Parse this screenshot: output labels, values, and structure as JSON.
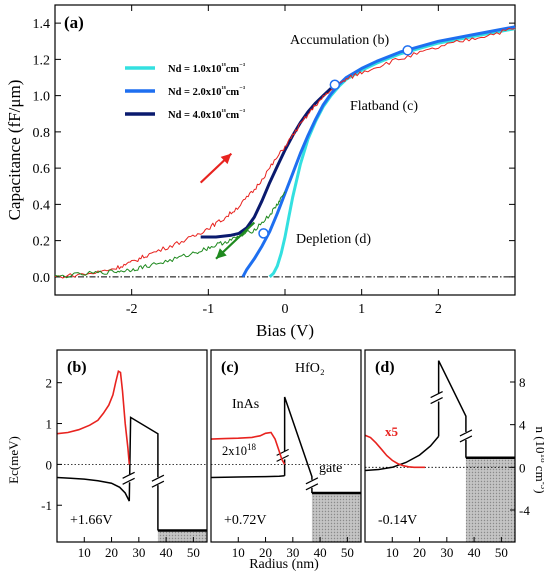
{
  "chart_data": [
    {
      "type": "line",
      "panel_label": "(a)",
      "xlabel": "Bias (V)",
      "ylabel": "Capacitance (fF/μm)",
      "xlim": [
        -3.0,
        3.0
      ],
      "ylim": [
        -0.1,
        1.5
      ],
      "xticks": [
        -2,
        -1,
        0,
        1,
        2
      ],
      "yticks": [
        0.0,
        0.2,
        0.4,
        0.6,
        0.8,
        1.0,
        1.2,
        1.4
      ],
      "grid": false,
      "legend_position": "upper-left",
      "series": [
        {
          "name": "Nd = 1.0x10¹⁸cm⁻³",
          "color": "#33e0e0",
          "x": [
            -0.2,
            -0.15,
            -0.1,
            -0.05,
            0.0,
            0.05,
            0.1,
            0.2,
            0.3,
            0.4,
            0.5,
            0.6,
            0.7,
            0.8,
            1.0,
            1.2,
            1.5,
            2.0,
            2.5,
            3.0
          ],
          "y": [
            0.0,
            0.02,
            0.06,
            0.13,
            0.22,
            0.33,
            0.44,
            0.62,
            0.76,
            0.86,
            0.94,
            1.0,
            1.05,
            1.09,
            1.14,
            1.18,
            1.23,
            1.29,
            1.33,
            1.37
          ]
        },
        {
          "name": "Nd = 2.0x10¹⁸cm⁻³",
          "color": "#1e6ff0",
          "x": [
            -0.55,
            -0.5,
            -0.4,
            -0.3,
            -0.2,
            -0.1,
            0.0,
            0.1,
            0.2,
            0.3,
            0.4,
            0.5,
            0.6,
            0.7,
            0.8,
            1.0,
            1.2,
            1.5,
            2.0,
            2.5,
            3.0
          ],
          "y": [
            0.0,
            0.04,
            0.1,
            0.17,
            0.25,
            0.35,
            0.46,
            0.57,
            0.68,
            0.78,
            0.87,
            0.95,
            1.01,
            1.06,
            1.1,
            1.15,
            1.19,
            1.24,
            1.3,
            1.34,
            1.38
          ]
        },
        {
          "name": "Nd = 4.0x10¹⁸cm⁻³",
          "color": "#0a1a6e",
          "x": [
            -1.1,
            -0.9,
            -0.7,
            -0.6,
            -0.5,
            -0.4,
            -0.3,
            -0.2,
            -0.1,
            0.0,
            0.1,
            0.2,
            0.3,
            0.4,
            0.5,
            0.6
          ],
          "y": [
            0.22,
            0.22,
            0.23,
            0.24,
            0.27,
            0.33,
            0.42,
            0.52,
            0.61,
            0.7,
            0.78,
            0.85,
            0.91,
            0.96,
            1.0,
            1.04
          ]
        },
        {
          "name": "",
          "color": "#e8231f",
          "x": [
            -3.0,
            -2.5,
            -2.2,
            -2.0,
            -1.8,
            -1.5,
            -1.2,
            -1.0,
            -0.8,
            -0.6,
            -0.4,
            -0.2,
            0.0,
            0.2,
            0.4,
            0.6,
            0.8,
            1.0,
            1.4,
            1.8,
            2.2,
            2.6,
            3.0
          ],
          "y": [
            0.0,
            0.02,
            0.05,
            0.08,
            0.12,
            0.17,
            0.22,
            0.27,
            0.32,
            0.39,
            0.48,
            0.6,
            0.72,
            0.84,
            0.95,
            1.03,
            1.09,
            1.13,
            1.19,
            1.24,
            1.29,
            1.33,
            1.37
          ]
        },
        {
          "name": "",
          "color": "#1f8a1f",
          "x": [
            -3.0,
            -2.5,
            -2.2,
            -2.0,
            -1.8,
            -1.5,
            -1.2,
            -1.0,
            -0.8,
            -0.6,
            -0.4,
            -0.2,
            -0.1,
            0.0
          ],
          "y": [
            0.0,
            0.02,
            0.03,
            0.04,
            0.06,
            0.09,
            0.13,
            0.16,
            0.19,
            0.22,
            0.26,
            0.34,
            0.4,
            0.47
          ]
        }
      ],
      "markers": [
        {
          "x": 1.6,
          "y": 1.25,
          "label": "Accumulation (b)"
        },
        {
          "x": 0.65,
          "y": 1.06,
          "label": "Flatband (c)"
        },
        {
          "x": -0.28,
          "y": 0.24,
          "label": "Depletion (d)"
        }
      ],
      "reference_line": {
        "y": 0.0,
        "style": "dash-dot"
      },
      "arrows": [
        {
          "from": [
            -1.1,
            0.52
          ],
          "to": [
            -0.7,
            0.68
          ],
          "color": "#e8231f"
        },
        {
          "from": [
            -0.4,
            0.3
          ],
          "to": [
            -0.9,
            0.1
          ],
          "color": "#1f8a1f"
        }
      ]
    },
    {
      "type": "line",
      "panel_label": "(b)",
      "xlabel": "",
      "ylabel": "Ec(meV)",
      "xlim": [
        0,
        55
      ],
      "ylim": [
        -1.9,
        2.8
      ],
      "xticks": [
        10,
        20,
        30,
        40,
        50
      ],
      "yticks": [
        -1,
        0,
        1,
        2
      ],
      "bias_label": "+1.66V",
      "series": [
        {
          "name": "Ec",
          "color": "#000000",
          "x": [
            0,
            5,
            10,
            15,
            20,
            23,
            25,
            26.5
          ],
          "y": [
            -0.32,
            -0.34,
            -0.36,
            -0.4,
            -0.46,
            -0.56,
            -0.7,
            -0.9
          ]
        },
        {
          "name": "n",
          "color": "#e8231f",
          "x": [
            0,
            4,
            8,
            12,
            15,
            17,
            19,
            20.5,
            21.5,
            22.5,
            23.3,
            24,
            25,
            26,
            26.5
          ],
          "y": [
            0.75,
            0.78,
            0.85,
            0.96,
            1.08,
            1.25,
            1.45,
            1.7,
            2.0,
            2.28,
            2.25,
            1.8,
            1.0,
            0.4,
            0.0
          ]
        }
      ],
      "oxide": {
        "x": [
          27,
          37
        ],
        "top": 1.15,
        "bottom": 0.75
      },
      "gate": {
        "x": [
          37,
          55
        ],
        "level": -1.62
      }
    },
    {
      "type": "line",
      "panel_label": "(c)",
      "xlabel": "Radius (nm)",
      "xlim": [
        0,
        55
      ],
      "xticks": [
        10,
        20,
        30,
        40,
        50
      ],
      "bias_label": "+0.72V",
      "annotations": [
        "InAs",
        "HfO₂",
        "gate"
      ],
      "density_label": {
        "mantissa": "2x10",
        "exponent": "18"
      },
      "series": [
        {
          "name": "Ec",
          "color": "#000000",
          "x": [
            0,
            10,
            20,
            25,
            27
          ],
          "y": [
            -0.32,
            -0.31,
            -0.3,
            -0.29,
            -0.28
          ]
        },
        {
          "name": "n",
          "color": "#e8231f",
          "x": [
            0,
            5,
            10,
            15,
            18,
            20,
            22,
            23.5,
            25,
            26,
            27
          ],
          "y": [
            0.62,
            0.63,
            0.64,
            0.66,
            0.7,
            0.76,
            0.78,
            0.62,
            0.32,
            0.12,
            0.0
          ]
        }
      ],
      "oxide": {
        "x": [
          27,
          37
        ],
        "top": 1.65,
        "bottom": -0.3
      },
      "gate": {
        "x": [
          37,
          55
        ],
        "level": -0.7
      }
    },
    {
      "type": "line",
      "panel_label": "(d)",
      "xlabel": "",
      "ylabel": "n (10¹⁸ cm⁻³)",
      "ylabel_mantissa": "n (10",
      "ylabel_exponent": "18",
      "ylabel_unit": " cm",
      "ylabel_unit_exponent": "-3",
      "ylabel_close": ")",
      "xlim": [
        0,
        55
      ],
      "ylim": [
        -7,
        11
      ],
      "xticks": [
        10,
        20,
        30,
        40,
        50
      ],
      "yticks": [
        -4,
        0,
        4,
        8
      ],
      "bias_label": "-0.14V",
      "scale_note": "x5",
      "series": [
        {
          "name": "Ec",
          "color": "#000000",
          "x": [
            0,
            5,
            10,
            15,
            20,
            24,
            27
          ],
          "y": [
            -0.3,
            -0.2,
            0.0,
            0.45,
            1.15,
            2.0,
            2.9
          ]
        },
        {
          "name": "n x5",
          "color": "#e8231f",
          "x": [
            0,
            2,
            4,
            6,
            8,
            10,
            12,
            14,
            16,
            18,
            22
          ],
          "y": [
            3.0,
            2.8,
            2.3,
            1.7,
            1.1,
            0.65,
            0.35,
            0.15,
            0.05,
            0.0,
            0.0
          ]
        }
      ],
      "oxide": {
        "x": [
          27,
          37
        ],
        "top": 10.0,
        "bottom": 4.8
      },
      "gate": {
        "x": [
          37,
          55
        ],
        "level": 0.9
      }
    }
  ]
}
